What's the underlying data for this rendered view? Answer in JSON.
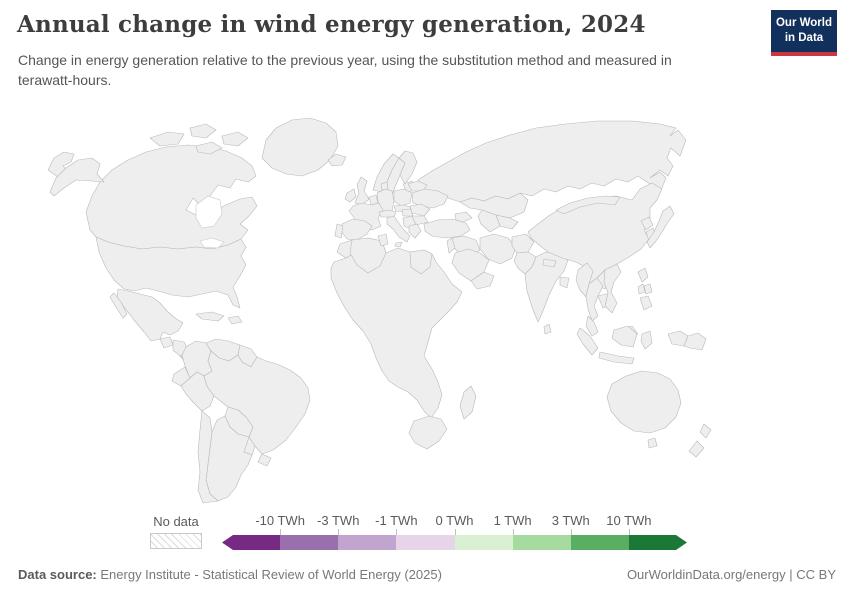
{
  "header": {
    "title": "Annual change in wind energy generation, 2024",
    "subtitle": "Change in energy generation relative to the previous year, using the substitution method and measured in terawatt-hours.",
    "logo": {
      "line1": "Our World",
      "line2": "in Data",
      "bg": "#12305c",
      "accent": "#cd3741"
    }
  },
  "chart_data": {
    "type": "heatmap",
    "subtype": "world-choropleth",
    "title": "Annual change in wind energy generation, 2024",
    "unit": "TWh",
    "legend_labels": [
      "-10 TWh",
      "-3 TWh",
      "-1 TWh",
      "0 TWh",
      "1 TWh",
      "3 TWh",
      "10 TWh"
    ],
    "bin_ranges": [
      "< -10 TWh",
      "-10 to -3 TWh",
      "-3 to -1 TWh",
      "-1 to 0 TWh",
      "0 to 1 TWh",
      "1 to 3 TWh",
      "3 to 10 TWh",
      "> 10 TWh"
    ],
    "colors": [
      "#762a83",
      "#9970ab",
      "#c2a5cf",
      "#e7d4e8",
      "#d9f0d3",
      "#a6dba0",
      "#5aae61",
      "#1b7837"
    ],
    "no_data_label": "No data",
    "regions": [
      {
        "id": "russia",
        "name": "Russia",
        "bin": 3
      },
      {
        "id": "canada",
        "name": "Canada",
        "bin": 7
      },
      {
        "id": "usa",
        "name": "United States",
        "bin": 7
      },
      {
        "id": "greenland",
        "name": "Greenland",
        "bin": "no_data"
      },
      {
        "id": "mexico",
        "name": "Mexico",
        "bin": 2
      },
      {
        "id": "guatemala",
        "name": "Guatemala",
        "bin": "no_data"
      },
      {
        "id": "honduras-nicaragua",
        "name": "Honduras and Nicaragua",
        "bin": "no_data"
      },
      {
        "id": "costa-rica-panama",
        "name": "Costa Rica and Panama",
        "bin": "no_data"
      },
      {
        "id": "cuba",
        "name": "Cuba",
        "bin": "no_data"
      },
      {
        "id": "hispaniola",
        "name": "Hispaniola",
        "bin": "no_data"
      },
      {
        "id": "colombia",
        "name": "Colombia",
        "bin": 3
      },
      {
        "id": "venezuela",
        "name": "Venezuela",
        "bin": 4
      },
      {
        "id": "guyanas",
        "name": "Guyanas",
        "bin": "no_data"
      },
      {
        "id": "ecuador",
        "name": "Ecuador",
        "bin": 4
      },
      {
        "id": "peru",
        "name": "Peru",
        "bin": 6
      },
      {
        "id": "brazil",
        "name": "Brazil",
        "bin": 7
      },
      {
        "id": "bolivia",
        "name": "Bolivia",
        "bin": "no_data"
      },
      {
        "id": "paraguay",
        "name": "Paraguay",
        "bin": "no_data"
      },
      {
        "id": "uruguay",
        "name": "Uruguay",
        "bin": 6
      },
      {
        "id": "chile",
        "name": "Chile",
        "bin": 5
      },
      {
        "id": "argentina",
        "name": "Argentina",
        "bin": 6
      },
      {
        "id": "iceland",
        "name": "Iceland",
        "bin": 5
      },
      {
        "id": "norway",
        "name": "Norway",
        "bin": 5
      },
      {
        "id": "sweden",
        "name": "Sweden",
        "bin": 7
      },
      {
        "id": "finland",
        "name": "Finland",
        "bin": 7
      },
      {
        "id": "baltics",
        "name": "Baltic states",
        "bin": 4
      },
      {
        "id": "denmark",
        "name": "Denmark",
        "bin": 5
      },
      {
        "id": "uk",
        "name": "United Kingdom",
        "bin": 6
      },
      {
        "id": "ireland",
        "name": "Ireland",
        "bin": 2
      },
      {
        "id": "france",
        "name": "France",
        "bin": 0
      },
      {
        "id": "benelux",
        "name": "Benelux",
        "bin": 4
      },
      {
        "id": "germany",
        "name": "Germany",
        "bin": 1
      },
      {
        "id": "poland",
        "name": "Poland",
        "bin": 6
      },
      {
        "id": "czech-slovakia",
        "name": "Czechia and Slovakia",
        "bin": 4
      },
      {
        "id": "austria-switzerland",
        "name": "Austria and Switzerland",
        "bin": 4
      },
      {
        "id": "hungary",
        "name": "Hungary",
        "bin": 2
      },
      {
        "id": "italy",
        "name": "Italy",
        "bin": 1
      },
      {
        "id": "spain",
        "name": "Spain",
        "bin": 2
      },
      {
        "id": "portugal",
        "name": "Portugal",
        "bin": 2
      },
      {
        "id": "balkans",
        "name": "Balkans",
        "bin": 4
      },
      {
        "id": "romania",
        "name": "Romania",
        "bin": 1
      },
      {
        "id": "bulgaria",
        "name": "Bulgaria",
        "bin": 3
      },
      {
        "id": "greece",
        "name": "Greece",
        "bin": 6
      },
      {
        "id": "ukraine",
        "name": "Ukraine",
        "bin": 3
      },
      {
        "id": "belarus",
        "name": "Belarus",
        "bin": 2
      },
      {
        "id": "kazakhstan",
        "name": "Kazakhstan",
        "bin": 4
      },
      {
        "id": "uzbekistan",
        "name": "Uzbekistan",
        "bin": 5
      },
      {
        "id": "turkmenistan",
        "name": "Turkmenistan",
        "bin": 3
      },
      {
        "id": "caucasus",
        "name": "Caucasus",
        "bin": 4
      },
      {
        "id": "turkey",
        "name": "Turkey",
        "bin": 7
      },
      {
        "id": "syria-iraq",
        "name": "Syria and Iraq",
        "bin": 4
      },
      {
        "id": "israel-jordan",
        "name": "Israel and Jordan",
        "bin": 5
      },
      {
        "id": "saudi-arabia",
        "name": "Saudi Arabia",
        "bin": 4
      },
      {
        "id": "yemen-oman",
        "name": "Yemen and Oman",
        "bin": 4
      },
      {
        "id": "iran",
        "name": "Iran",
        "bin": 4
      },
      {
        "id": "afghanistan",
        "name": "Afghanistan",
        "bin": "no_data"
      },
      {
        "id": "pakistan",
        "name": "Pakistan",
        "bin": 2
      },
      {
        "id": "india",
        "name": "India",
        "bin": 1
      },
      {
        "id": "nepal",
        "name": "Nepal",
        "bin": 5
      },
      {
        "id": "bangladesh",
        "name": "Bangladesh",
        "bin": 2
      },
      {
        "id": "sri-lanka",
        "name": "Sri Lanka",
        "bin": 5
      },
      {
        "id": "china",
        "name": "China",
        "bin": 7
      },
      {
        "id": "mongolia",
        "name": "Mongolia",
        "bin": "no_data"
      },
      {
        "id": "north-korea",
        "name": "North Korea",
        "bin": "no_data"
      },
      {
        "id": "south-korea",
        "name": "South Korea",
        "bin": 3
      },
      {
        "id": "japan",
        "name": "Japan",
        "bin": 6
      },
      {
        "id": "taiwan",
        "name": "Taiwan",
        "bin": 6
      },
      {
        "id": "myanmar",
        "name": "Myanmar",
        "bin": 2
      },
      {
        "id": "thailand",
        "name": "Thailand",
        "bin": 3
      },
      {
        "id": "laos",
        "name": "Laos",
        "bin": "no_data"
      },
      {
        "id": "cambodia",
        "name": "Cambodia",
        "bin": 3
      },
      {
        "id": "vietnam",
        "name": "Vietnam",
        "bin": 5
      },
      {
        "id": "malaysia",
        "name": "Malaysia",
        "bin": 4
      },
      {
        "id": "philippines",
        "name": "Philippines",
        "bin": 3
      },
      {
        "id": "indonesia",
        "name": "Indonesia",
        "bin": 4
      },
      {
        "id": "papua-new-guinea",
        "name": "Papua New Guinea",
        "bin": "no_data"
      },
      {
        "id": "australia",
        "name": "Australia",
        "bin": 5
      },
      {
        "id": "new-zealand",
        "name": "New Zealand",
        "bin": 6
      },
      {
        "id": "africa",
        "name": "Sub-Saharan Africa",
        "bin": "no_data"
      },
      {
        "id": "morocco",
        "name": "Morocco",
        "bin": 6
      },
      {
        "id": "algeria",
        "name": "Algeria",
        "bin": 4
      },
      {
        "id": "tunisia",
        "name": "Tunisia",
        "bin": 3
      },
      {
        "id": "egypt",
        "name": "Egypt",
        "bin": 4
      },
      {
        "id": "south-africa",
        "name": "South Africa",
        "bin": 1
      },
      {
        "id": "madagascar",
        "name": "Madagascar",
        "bin": "no_data"
      }
    ]
  },
  "footer": {
    "source_label": "Data source:",
    "source_text": "Energy Institute - Statistical Review of World Energy (2025)",
    "right_text": "OurWorldinData.org/energy | CC BY"
  }
}
